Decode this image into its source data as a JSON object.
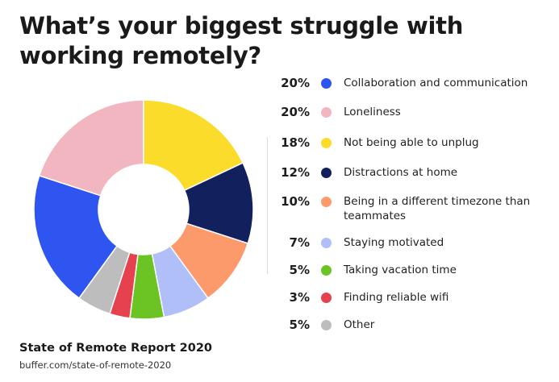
{
  "chart_data": {
    "type": "pie",
    "title": "What’s your biggest struggle with working remotely?",
    "categories": [
      "Collaboration and communication",
      "Loneliness",
      "Not being able to unplug",
      "Distractions at home",
      "Being in a different timezone than teammates",
      "Staying motivated",
      "Taking vacation time",
      "Finding reliable wifi",
      "Other"
    ],
    "values": [
      20,
      20,
      18,
      12,
      10,
      7,
      5,
      3,
      5
    ],
    "value_labels": [
      "20%",
      "20%",
      "18%",
      "12%",
      "10%",
      "7%",
      "5%",
      "3%",
      "5%"
    ],
    "colors": [
      "#2e55f0",
      "#f2b6c1",
      "#fbdc2a",
      "#12205e",
      "#fd9a6c",
      "#b1bff8",
      "#6cc424",
      "#e5414f",
      "#bdbdbd"
    ],
    "legend_position": "right",
    "hole": "donut"
  },
  "source": {
    "title": "State of Remote Report 2020",
    "url": "buffer.com/state-of-remote-2020"
  }
}
